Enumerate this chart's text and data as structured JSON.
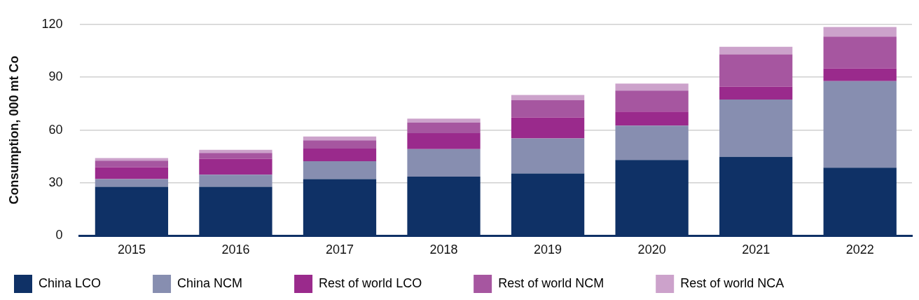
{
  "chart_data": {
    "type": "bar",
    "stacked": true,
    "ylabel": "Consumption, 000 mt Co",
    "categories": [
      "2015",
      "2016",
      "2017",
      "2018",
      "2019",
      "2020",
      "2021",
      "2022"
    ],
    "series": [
      {
        "name": "China LCO",
        "color": "#0f3166",
        "values": [
          27.8,
          27.8,
          32.2,
          33.6,
          35.4,
          43,
          44.8,
          38.7
        ]
      },
      {
        "name": "China NCM",
        "color": "#878eb0",
        "values": [
          4.4,
          6.9,
          10.1,
          15.6,
          19.9,
          19.5,
          32.5,
          49.1
        ]
      },
      {
        "name": "Rest of world LCO",
        "color": "#9a2a8c",
        "values": [
          6.8,
          9,
          7.2,
          9,
          11.9,
          8,
          7.3,
          7.2
        ]
      },
      {
        "name": "Rest of world NCM",
        "color": "#a656a0",
        "values": [
          3.6,
          3.3,
          4.7,
          6.1,
          9.8,
          11.9,
          18.4,
          18.1
        ]
      },
      {
        "name": "Rest of world NCA",
        "color": "#cca2cb",
        "values": [
          1.5,
          1.8,
          2.2,
          2.2,
          2.9,
          4,
          4.3,
          5.4
        ]
      }
    ],
    "ylim": [
      0,
      120
    ],
    "yticks": [
      0,
      30,
      60,
      90,
      120
    ],
    "grid": "y",
    "legend": "bottom"
  }
}
